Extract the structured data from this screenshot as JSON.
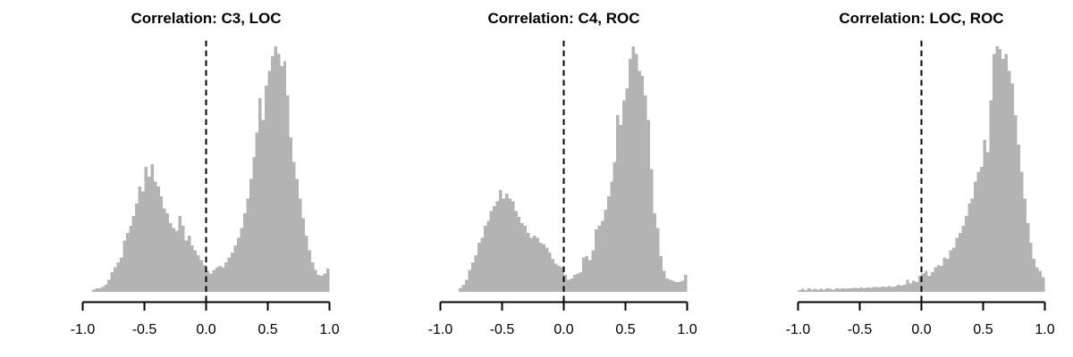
{
  "figure": {
    "background": "#ffffff"
  },
  "colors": {
    "bar_fill": "#b3b3b3",
    "axis": "#000000",
    "title_text": "#000000",
    "tick_text": "#000000",
    "vline": "#000000"
  },
  "chart_data": [
    {
      "type": "bar",
      "subtype": "histogram",
      "title": "Correlation: C3, LOC",
      "xlabel": "",
      "ylabel": "",
      "xlim": [
        -1.0,
        1.0
      ],
      "x_ticks": [
        -1.0,
        -0.5,
        0.0,
        0.5,
        1.0
      ],
      "x_tick_labels": [
        "-1.0",
        "-0.5",
        "0.0",
        "0.5",
        "1.0"
      ],
      "grid": false,
      "legend": "none",
      "y_axis_shown": false,
      "reference_line": {
        "x": 0.0,
        "orientation": "vertical",
        "style": "dashed"
      },
      "bins": {
        "start": -1.0,
        "width": 0.025,
        "count": 80
      },
      "values_unit": "fraction_of_tallest_bar",
      "values": [
        0,
        0,
        0,
        0.01,
        0.015,
        0.015,
        0.02,
        0.03,
        0.05,
        0.08,
        0.1,
        0.12,
        0.14,
        0.21,
        0.24,
        0.27,
        0.31,
        0.36,
        0.43,
        0.41,
        0.51,
        0.47,
        0.52,
        0.45,
        0.43,
        0.39,
        0.34,
        0.32,
        0.28,
        0.26,
        0.25,
        0.31,
        0.27,
        0.21,
        0.23,
        0.19,
        0.17,
        0.15,
        0.13,
        0.11,
        0.085,
        0.075,
        0.09,
        0.1,
        0.105,
        0.1,
        0.12,
        0.14,
        0.16,
        0.19,
        0.22,
        0.26,
        0.32,
        0.38,
        0.46,
        0.55,
        0.65,
        0.79,
        0.7,
        0.84,
        0.9,
        0.96,
        1.0,
        0.97,
        0.92,
        0.94,
        0.8,
        0.63,
        0.53,
        0.46,
        0.38,
        0.3,
        0.23,
        0.17,
        0.12,
        0.09,
        0.07,
        0.065,
        0.075,
        0.095
      ]
    },
    {
      "type": "bar",
      "subtype": "histogram",
      "title": "Correlation: C4, ROC",
      "xlabel": "",
      "ylabel": "",
      "xlim": [
        -1.0,
        1.0
      ],
      "x_ticks": [
        -1.0,
        -0.5,
        0.0,
        0.5,
        1.0
      ],
      "x_tick_labels": [
        "-1.0",
        "-0.5",
        "0.0",
        "0.5",
        "1.0"
      ],
      "grid": false,
      "legend": "none",
      "y_axis_shown": false,
      "reference_line": {
        "x": 0.0,
        "orientation": "vertical",
        "style": "dashed"
      },
      "bins": {
        "start": -1.0,
        "width": 0.025,
        "count": 80
      },
      "values_unit": "fraction_of_tallest_bar",
      "values": [
        0,
        0,
        0,
        0,
        0,
        0,
        0.015,
        0.03,
        0.05,
        0.09,
        0.12,
        0.15,
        0.2,
        0.22,
        0.27,
        0.29,
        0.33,
        0.35,
        0.37,
        0.415,
        0.38,
        0.4,
        0.38,
        0.37,
        0.33,
        0.305,
        0.28,
        0.27,
        0.24,
        0.22,
        0.23,
        0.22,
        0.2,
        0.195,
        0.18,
        0.16,
        0.135,
        0.115,
        0.105,
        0.1,
        0.07,
        0.05,
        0.055,
        0.07,
        0.075,
        0.08,
        0.14,
        0.145,
        0.13,
        0.17,
        0.255,
        0.27,
        0.29,
        0.335,
        0.39,
        0.45,
        0.53,
        0.72,
        0.68,
        0.78,
        0.83,
        0.95,
        1.0,
        0.97,
        0.9,
        0.88,
        0.8,
        0.7,
        0.5,
        0.32,
        0.26,
        0.145,
        0.085,
        0.055,
        0.05,
        0.045,
        0.04,
        0.04,
        0.045,
        0.07
      ]
    },
    {
      "type": "bar",
      "subtype": "histogram",
      "title": "Correlation: LOC, ROC",
      "xlabel": "",
      "ylabel": "",
      "xlim": [
        -1.0,
        1.0
      ],
      "x_ticks": [
        -1.0,
        -0.5,
        0.0,
        0.5,
        1.0
      ],
      "x_tick_labels": [
        "-1.0",
        "-0.5",
        "0.0",
        "0.5",
        "1.0"
      ],
      "grid": false,
      "legend": "none",
      "y_axis_shown": false,
      "reference_line": {
        "x": 0.0,
        "orientation": "vertical",
        "style": "dashed"
      },
      "bins": {
        "start": -1.0,
        "width": 0.025,
        "count": 80
      },
      "values_unit": "fraction_of_tallest_bar",
      "values": [
        0.008,
        0.012,
        0.008,
        0.014,
        0.01,
        0.012,
        0.01,
        0.012,
        0.01,
        0.014,
        0.012,
        0.01,
        0.014,
        0.012,
        0.014,
        0.012,
        0.015,
        0.014,
        0.016,
        0.015,
        0.018,
        0.015,
        0.018,
        0.016,
        0.02,
        0.02,
        0.018,
        0.022,
        0.02,
        0.024,
        0.02,
        0.022,
        0.03,
        0.025,
        0.03,
        0.05,
        0.035,
        0.045,
        0.04,
        0.066,
        0.075,
        0.085,
        0.065,
        0.08,
        0.1,
        0.11,
        0.105,
        0.14,
        0.135,
        0.17,
        0.18,
        0.22,
        0.24,
        0.27,
        0.31,
        0.36,
        0.38,
        0.45,
        0.49,
        0.51,
        0.62,
        0.57,
        0.78,
        0.97,
        1.0,
        0.99,
        0.95,
        0.97,
        0.9,
        0.85,
        0.72,
        0.6,
        0.49,
        0.38,
        0.28,
        0.2,
        0.135,
        0.1,
        0.085,
        0.06
      ]
    }
  ]
}
